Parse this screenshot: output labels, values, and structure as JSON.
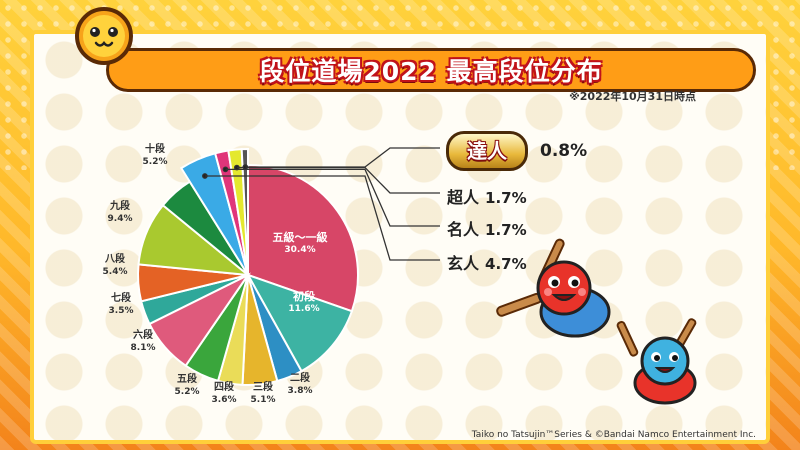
{
  "title": "段位道場2022 最高段位分布",
  "note": "※2022年10月31日時点",
  "copyright": "Taiko no Tatsujin™Series & ©Bandai Namco Entertainment Inc.",
  "colors": {
    "frame": "#ffcf3a",
    "title_bar": "#ff9d16",
    "title_outline": "#c0121a"
  },
  "chart_data": {
    "type": "pie",
    "title": "段位道場2022 最高段位分布",
    "unit": "%",
    "start": "12 o'clock, clockwise",
    "slices": [
      {
        "name": "五級〜一級",
        "value": 30.4,
        "color": "#d74667",
        "label": "30.4%"
      },
      {
        "name": "初段",
        "value": 11.6,
        "color": "#3db3a3",
        "label": "11.6%"
      },
      {
        "name": "二段",
        "value": 3.8,
        "color": "#2d8fc4",
        "label": "3.8%"
      },
      {
        "name": "三段",
        "value": 5.1,
        "color": "#e6b52c",
        "label": "5.1%"
      },
      {
        "name": "四段",
        "value": 3.6,
        "color": "#eadc58",
        "label": "3.6%"
      },
      {
        "name": "五段",
        "value": 5.2,
        "color": "#3aa63c",
        "label": "5.2%"
      },
      {
        "name": "六段",
        "value": 8.1,
        "color": "#df5a7c",
        "label": "8.1%"
      },
      {
        "name": "七段",
        "value": 3.5,
        "color": "#2fa89a",
        "label": "3.5%"
      },
      {
        "name": "八段",
        "value": 5.4,
        "color": "#e46225",
        "label": "5.4%"
      },
      {
        "name": "九段",
        "value": 9.4,
        "color": "#a9c92f",
        "label": "9.4%"
      },
      {
        "name": "十段",
        "value": 5.2,
        "color": "#1c8a3f",
        "label": "5.2%"
      },
      {
        "name": "玄人",
        "value": 4.7,
        "color": "#3aaae6",
        "label": "4.7%",
        "exploded": true
      },
      {
        "name": "名人",
        "value": 1.7,
        "color": "#e0357a",
        "label": "1.7%",
        "exploded": true
      },
      {
        "name": "超人",
        "value": 1.7,
        "color": "#e4e82e",
        "label": "1.7%",
        "exploded": true
      },
      {
        "name": "達人",
        "value": 0.8,
        "color": "#555555",
        "label": "0.8%",
        "exploded": true
      }
    ]
  },
  "callouts": {
    "tatsujin": {
      "name": "達人",
      "value": "0.8%"
    },
    "chojin": {
      "name": "超人",
      "value": "1.7%"
    },
    "meijin": {
      "name": "名人",
      "value": "1.7%"
    },
    "kurohito": {
      "name": "玄人",
      "value": "4.7%"
    }
  }
}
